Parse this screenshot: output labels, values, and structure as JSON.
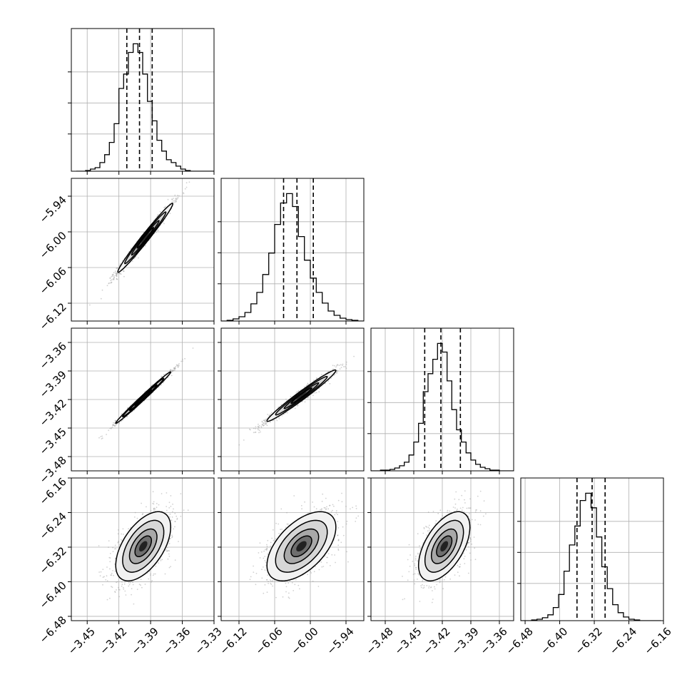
{
  "chart_data": {
    "type": "corner",
    "grid": true,
    "parameters": [
      {
        "lim": [
          -3.465,
          -3.33
        ],
        "ticks": [
          "−3.45",
          "−3.42",
          "−3.39",
          "−3.36",
          "−3.33"
        ],
        "tick_values": [
          -3.45,
          -3.42,
          -3.39,
          -3.36,
          -3.33
        ]
      },
      {
        "lim": [
          -6.15,
          -5.91
        ],
        "ticks": [
          "−6.12",
          "−6.06",
          "−6.00",
          "−5.94"
        ],
        "tick_values": [
          -6.12,
          -6.06,
          -6.0,
          -5.94
        ]
      },
      {
        "lim": [
          -3.495,
          -3.345
        ],
        "ticks": [
          "−3.48",
          "−3.45",
          "−3.42",
          "−3.39",
          "−3.36"
        ],
        "tick_values": [
          -3.48,
          -3.45,
          -3.42,
          -3.39,
          -3.36
        ]
      },
      {
        "lim": [
          -6.49,
          -6.16
        ],
        "ticks": [
          "−6.48",
          "−6.40",
          "−6.32",
          "−6.24",
          "−6.16"
        ],
        "tick_values": [
          -6.48,
          -6.4,
          -6.32,
          -6.24,
          -6.16
        ]
      }
    ],
    "histograms": [
      {
        "edges": [
          -3.4605,
          -3.456,
          -3.4515,
          -3.447,
          -3.4425,
          -3.438,
          -3.4335,
          -3.429,
          -3.4245,
          -3.42,
          -3.4155,
          -3.411,
          -3.4065,
          -3.402,
          -3.3975,
          -3.393,
          -3.3885,
          -3.384,
          -3.3795,
          -3.375,
          -3.3705,
          -3.366,
          -3.3615,
          -3.357,
          -3.3525,
          -3.348,
          -3.3435,
          -3.339,
          -3.3345,
          -3.33
        ],
        "counts": [
          0,
          0,
          1,
          3,
          5,
          12,
          23,
          40,
          66,
          115,
          135,
          165,
          177,
          165,
          135,
          97,
          70,
          43,
          28,
          16,
          12,
          7,
          3,
          1,
          0,
          0,
          0,
          0,
          0
        ],
        "quantiles": [
          -3.4125,
          -3.4005,
          -3.3885
        ]
      },
      {
        "edges": [
          -6.15,
          -6.14,
          -6.13,
          -6.12,
          -6.11,
          -6.1,
          -6.09,
          -6.08,
          -6.07,
          -6.06,
          -6.05,
          -6.04,
          -6.03,
          -6.02,
          -6.01,
          -6.0,
          -5.99,
          -5.98,
          -5.97,
          -5.96,
          -5.95,
          -5.94,
          -5.93,
          -5.92,
          -5.91
        ],
        "counts": [
          0,
          1,
          3,
          6,
          12,
          24,
          40,
          65,
          95,
          135,
          165,
          178,
          160,
          118,
          85,
          60,
          40,
          25,
          14,
          8,
          4,
          2,
          1,
          0
        ],
        "quantiles": [
          -6.045,
          -6.0225,
          -5.995
        ]
      },
      {
        "edges": [
          -3.495,
          -3.49,
          -3.485,
          -3.48,
          -3.475,
          -3.47,
          -3.465,
          -3.46,
          -3.455,
          -3.45,
          -3.445,
          -3.44,
          -3.435,
          -3.43,
          -3.425,
          -3.42,
          -3.415,
          -3.41,
          -3.405,
          -3.4,
          -3.395,
          -3.39,
          -3.385,
          -3.38,
          -3.375,
          -3.37,
          -3.365,
          -3.36,
          -3.355,
          -3.35,
          -3.345
        ],
        "counts": [
          0,
          0,
          1,
          1,
          2,
          4,
          7,
          12,
          22,
          40,
          66,
          110,
          135,
          155,
          177,
          165,
          125,
          85,
          57,
          40,
          25,
          15,
          9,
          5,
          3,
          1,
          1,
          0,
          0,
          0
        ],
        "quantiles": [
          -3.4385,
          -3.4215,
          -3.401
        ]
      },
      {
        "edges": [
          -6.49,
          -6.4775,
          -6.465,
          -6.4525,
          -6.44,
          -6.4275,
          -6.415,
          -6.4025,
          -6.39,
          -6.3775,
          -6.365,
          -6.3525,
          -6.34,
          -6.3275,
          -6.315,
          -6.3025,
          -6.29,
          -6.2775,
          -6.265,
          -6.2525,
          -6.24,
          -6.2275,
          -6.215,
          -6.2025,
          -6.19,
          -6.1775,
          -6.165
        ],
        "counts": [
          0,
          0,
          1,
          2,
          4,
          8,
          18,
          36,
          68,
          104,
          130,
          165,
          175,
          155,
          115,
          74,
          44,
          22,
          11,
          5,
          2,
          1,
          0,
          0,
          0,
          0
        ],
        "quantiles": [
          -6.36,
          -6.325,
          -6.295
        ]
      }
    ],
    "pairs": [
      {
        "row": 1,
        "col": 0,
        "center": [
          -3.395,
          -6.01
        ],
        "sd": [
          0.013,
          0.029
        ],
        "rho": 0.985
      },
      {
        "row": 2,
        "col": 0,
        "center": [
          -3.397,
          -3.418
        ],
        "sd": [
          0.013,
          0.0135
        ],
        "rho": 0.993
      },
      {
        "row": 2,
        "col": 1,
        "center": [
          -6.015,
          -3.416
        ],
        "sd": [
          0.029,
          0.0135
        ],
        "rho": 0.98
      },
      {
        "row": 3,
        "col": 0,
        "center": [
          -3.397,
          -6.318
        ],
        "sd": [
          0.013,
          0.04
        ],
        "rho": 0.55
      },
      {
        "row": 3,
        "col": 1,
        "center": [
          -6.015,
          -6.318
        ],
        "sd": [
          0.029,
          0.04
        ],
        "rho": 0.55
      },
      {
        "row": 3,
        "col": 2,
        "center": [
          -3.418,
          -6.318
        ],
        "sd": [
          0.0135,
          0.04
        ],
        "rho": 0.55
      }
    ]
  }
}
